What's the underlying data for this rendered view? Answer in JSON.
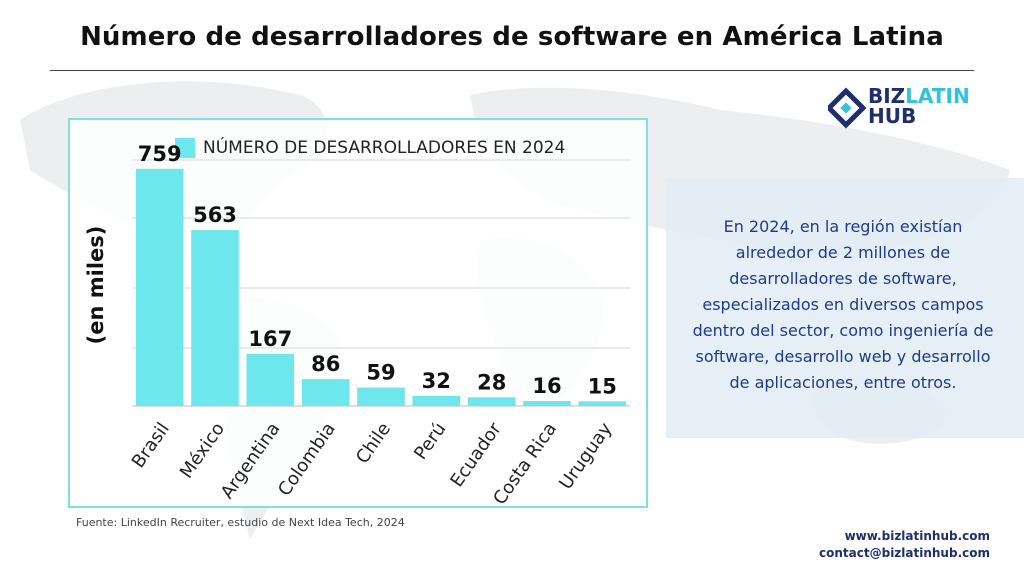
{
  "header": {
    "title": "Número de desarrolladores de software en América Latina"
  },
  "brand": {
    "logo_word1": "BIZ",
    "logo_word2": "LATIN",
    "logo_word3": "HUB",
    "colors": {
      "navy": "#1f2f6b",
      "cyan": "#33c3d6",
      "bar": "#6ee7ec"
    }
  },
  "chart_data": {
    "type": "bar",
    "title": "",
    "ylabel": "(en miles)",
    "xlabel": "",
    "legend": "top-left",
    "grid": true,
    "categories": [
      "Brasil",
      "México",
      "Argentina",
      "Colombia",
      "Chile",
      "Perú",
      "Ecuador",
      "Costa Rica",
      "Uruguay"
    ],
    "series": [
      {
        "name": "NÚMERO DE DESARROLLADORES EN 2024",
        "values": [
          759,
          563,
          167,
          86,
          59,
          32,
          28,
          16,
          15
        ],
        "color": "#6ee7ec"
      }
    ],
    "ylim": [
      0,
      800
    ]
  },
  "info": {
    "text": "En 2024, en la región existían alrededor de 2 millones de desarrolladores de software, especializados en diversos campos dentro del sector, como ingeniería de software, desarrollo web y desarrollo de aplicaciones, entre otros."
  },
  "source": "Fuente: LinkedIn Recruiter, estudio de Next Idea Tech, 2024",
  "footer": {
    "website": "www.bizlatinhub.com",
    "email": "contact@bizlatinhub.com"
  }
}
